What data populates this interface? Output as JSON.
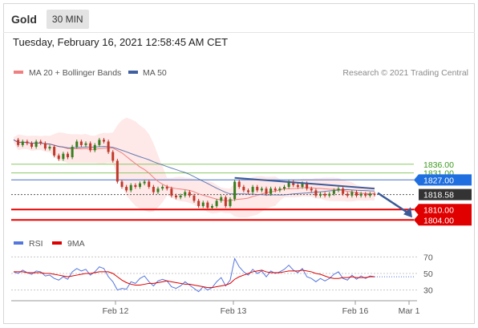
{
  "header": {
    "asset": "Gold",
    "timeframe": "30 MIN"
  },
  "datetime": "Tuesday, February 16, 2021 12:58:45 AM CET",
  "credit": "Research © 2021 Trading Central",
  "colors": {
    "ma20": "#f08080",
    "ma50": "#3f5fa0",
    "band": "#fde0e0",
    "trend": "#3a5a98",
    "resistance_green": "#8cc864",
    "pivot_blue": "#5a82cc",
    "support_red": "#ee0000",
    "rsi": "#5577dd",
    "ma9": "#dd0000",
    "current": "#333333"
  },
  "chart_data": {
    "type": "candlestick",
    "legend": [
      "MA 20 + Bollinger Bands",
      "MA 50"
    ],
    "ylim": [
      1800,
      1875
    ],
    "x_ticks": [
      "Feb 12",
      "Feb 13",
      "Feb 16",
      "Mar 1"
    ],
    "levels": [
      {
        "label": "1836.00",
        "value": 1836.0,
        "kind": "resistance"
      },
      {
        "label": "1831.00",
        "value": 1831.0,
        "kind": "resistance"
      },
      {
        "label": "1827.00",
        "value": 1827.0,
        "kind": "pivot"
      },
      {
        "label": "1818.58",
        "value": 1818.58,
        "kind": "current"
      },
      {
        "label": "1810.00",
        "value": 1810.0,
        "kind": "support"
      },
      {
        "label": "1804.00",
        "value": 1804.0,
        "kind": "support"
      }
    ],
    "close": [
      1850,
      1847,
      1849,
      1848,
      1846,
      1849,
      1848,
      1845,
      1846,
      1841,
      1839,
      1842,
      1840,
      1846,
      1849,
      1847,
      1848,
      1844,
      1847,
      1850,
      1849,
      1843,
      1838,
      1826,
      1823,
      1821,
      1824,
      1823,
      1825,
      1826,
      1823,
      1820,
      1822,
      1823,
      1822,
      1818,
      1817,
      1818,
      1820,
      1818,
      1815,
      1812,
      1814,
      1811,
      1812,
      1815,
      1817,
      1812,
      1816,
      1826,
      1823,
      1821,
      1820,
      1823,
      1821,
      1822,
      1819,
      1822,
      1821,
      1822,
      1823,
      1826,
      1824,
      1823,
      1825,
      1822,
      1821,
      1818,
      1819,
      1818,
      1819,
      1821,
      1822,
      1819,
      1818,
      1820,
      1818,
      1819,
      1818,
      1819,
      1818.58
    ],
    "trendline": [
      [
        1828.2,
        1822
      ]
    ],
    "projection": [
      1818.58,
      1804.0
    ],
    "rsi": {
      "legend": [
        "RSI",
        "9MA"
      ],
      "levels": [
        70,
        50,
        30
      ],
      "values": [
        52,
        50,
        54,
        51,
        49,
        53,
        52,
        47,
        48,
        44,
        42,
        46,
        43,
        52,
        56,
        53,
        55,
        48,
        52,
        58,
        56,
        46,
        40,
        30,
        32,
        31,
        40,
        38,
        44,
        47,
        40,
        35,
        41,
        43,
        41,
        34,
        32,
        35,
        40,
        36,
        32,
        28,
        34,
        30,
        33,
        40,
        45,
        35,
        42,
        68,
        58,
        52,
        48,
        55,
        50,
        53,
        46,
        53,
        50,
        52,
        55,
        60,
        54,
        51,
        56,
        46,
        44,
        40,
        44,
        41,
        44,
        49,
        52,
        44,
        42,
        48,
        43,
        47,
        44,
        47,
        46
      ],
      "ma9": [
        52,
        52,
        52,
        51,
        51,
        51,
        51,
        50,
        50,
        49,
        48,
        47,
        46,
        47,
        48,
        49,
        50,
        50,
        51,
        52,
        52,
        52,
        50,
        46,
        42,
        39,
        37,
        36,
        36,
        37,
        38,
        38,
        39,
        40,
        41,
        40,
        39,
        38,
        37,
        37,
        36,
        35,
        34,
        33,
        33,
        34,
        35,
        36,
        38,
        43,
        46,
        48,
        50,
        52,
        53,
        54,
        52,
        51,
        51,
        51,
        52,
        53,
        53,
        53,
        54,
        53,
        52,
        50,
        49,
        47,
        45,
        44,
        44,
        45,
        45,
        46,
        45,
        45,
        45,
        46,
        46
      ]
    }
  }
}
